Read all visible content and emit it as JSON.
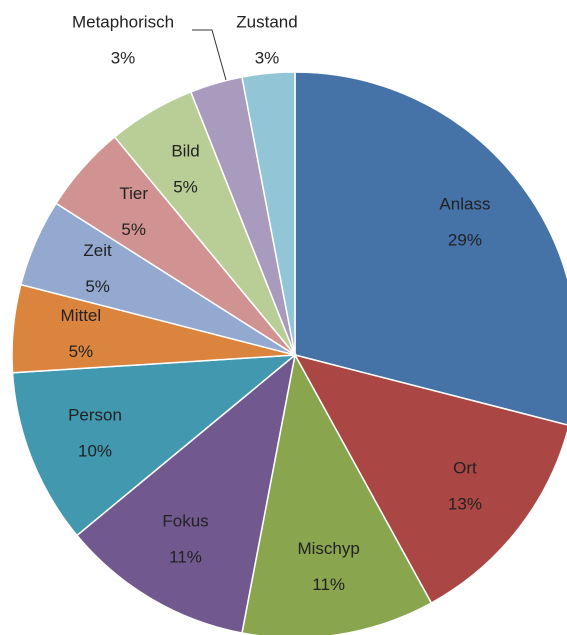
{
  "chart_data": {
    "type": "pie",
    "categories": [
      "Anlass",
      "Ort",
      "Mischyp",
      "Fokus",
      "Person",
      "Mittel",
      "Zeit",
      "Tier",
      "Bild",
      "Metaphorisch",
      "Zustand"
    ],
    "values": [
      29,
      13,
      11,
      11,
      10,
      5,
      5,
      5,
      5,
      3,
      3
    ],
    "value_labels": [
      "29%",
      "13%",
      "11%",
      "11%",
      "10%",
      "5%",
      "5%",
      "5%",
      "5%",
      "3%",
      "3%"
    ],
    "colors": [
      "#4572a7",
      "#aa4643",
      "#89a54e",
      "#71588f",
      "#4198af",
      "#db843d",
      "#93a9cf",
      "#d19392",
      "#b9cd96",
      "#a99bbd",
      "#92c5d6"
    ]
  }
}
